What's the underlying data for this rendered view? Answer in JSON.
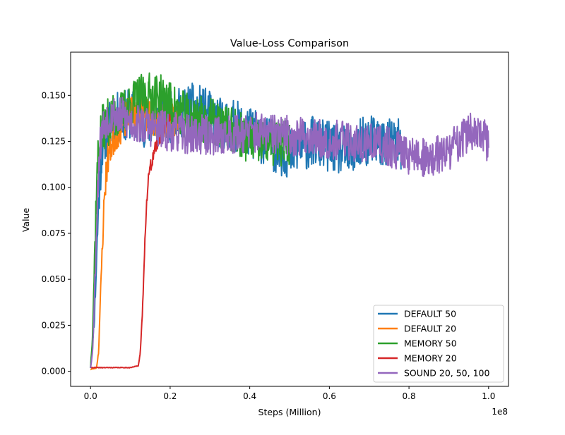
{
  "chart_data": {
    "type": "line",
    "title": "Value-Loss Comparison",
    "xlabel": "Steps (Million)",
    "ylabel": "Value",
    "x_offset_label": "1e8",
    "xlim": [
      -0.05,
      1.05
    ],
    "ylim": [
      -0.0082,
      0.1735
    ],
    "x_ticks": [
      0.0,
      0.2,
      0.4,
      0.6,
      0.8,
      1.0
    ],
    "x_tick_labels": [
      "0.0",
      "0.2",
      "0.4",
      "0.6",
      "0.8",
      "1.0"
    ],
    "y_ticks": [
      0.0,
      0.025,
      0.05,
      0.075,
      0.1,
      0.125,
      0.15
    ],
    "y_tick_labels": [
      "0.000",
      "0.025",
      "0.050",
      "0.075",
      "0.100",
      "0.125",
      "0.150"
    ],
    "grid": false,
    "legend_position": "lower-right",
    "series": [
      {
        "name": "DEFAULT 50",
        "color": "#1f77b4",
        "x": [
          0.0,
          0.01,
          0.02,
          0.025,
          0.03,
          0.04,
          0.05,
          0.07,
          0.1,
          0.13,
          0.16,
          0.2,
          0.23,
          0.26,
          0.29,
          0.32,
          0.36,
          0.4,
          0.42,
          0.45,
          0.48,
          0.5,
          0.53,
          0.56,
          0.6,
          0.63,
          0.66,
          0.68,
          0.7,
          0.72,
          0.75,
          0.78
        ],
        "y": [
          0.002,
          0.03,
          0.09,
          0.11,
          0.125,
          0.13,
          0.135,
          0.138,
          0.14,
          0.136,
          0.135,
          0.138,
          0.141,
          0.143,
          0.14,
          0.135,
          0.134,
          0.13,
          0.128,
          0.124,
          0.12,
          0.118,
          0.122,
          0.125,
          0.122,
          0.12,
          0.118,
          0.124,
          0.126,
          0.125,
          0.124,
          0.123
        ],
        "noise": 0.014,
        "seed": 11
      },
      {
        "name": "DEFAULT 20",
        "color": "#ff7f0e",
        "x": [
          0.0,
          0.015,
          0.02,
          0.025,
          0.03,
          0.035,
          0.04,
          0.045,
          0.05,
          0.06,
          0.08,
          0.1,
          0.12,
          0.15,
          0.18,
          0.2,
          0.22
        ],
        "y": [
          0.001,
          0.002,
          0.01,
          0.04,
          0.07,
          0.095,
          0.11,
          0.118,
          0.122,
          0.128,
          0.135,
          0.14,
          0.142,
          0.138,
          0.135,
          0.136,
          0.137
        ],
        "noise": 0.01,
        "seed": 23
      },
      {
        "name": "MEMORY 50",
        "color": "#2ca02c",
        "x": [
          0.0,
          0.005,
          0.01,
          0.015,
          0.02,
          0.025,
          0.03,
          0.04,
          0.06,
          0.08,
          0.1,
          0.12,
          0.15,
          0.18,
          0.2,
          0.23,
          0.26,
          0.3,
          0.34,
          0.38,
          0.42,
          0.46,
          0.5
        ],
        "y": [
          0.002,
          0.02,
          0.06,
          0.1,
          0.12,
          0.128,
          0.132,
          0.135,
          0.138,
          0.14,
          0.145,
          0.148,
          0.15,
          0.148,
          0.145,
          0.14,
          0.138,
          0.136,
          0.132,
          0.128,
          0.124,
          0.124,
          0.125
        ],
        "noise": 0.013,
        "seed": 37
      },
      {
        "name": "MEMORY 20",
        "color": "#d62728",
        "x": [
          0.0,
          0.02,
          0.04,
          0.06,
          0.08,
          0.1,
          0.12,
          0.125,
          0.13,
          0.135,
          0.14,
          0.145,
          0.15,
          0.155,
          0.16,
          0.17,
          0.18,
          0.19,
          0.2
        ],
        "y": [
          0.002,
          0.002,
          0.002,
          0.002,
          0.002,
          0.002,
          0.003,
          0.01,
          0.03,
          0.06,
          0.09,
          0.105,
          0.11,
          0.115,
          0.12,
          0.125,
          0.13,
          0.135,
          0.138
        ],
        "noise": 0.004,
        "seed": 41
      },
      {
        "name": "SOUND 20, 50, 100",
        "color": "#9467bd",
        "x": [
          0.0,
          0.005,
          0.01,
          0.015,
          0.02,
          0.025,
          0.03,
          0.04,
          0.06,
          0.08,
          0.1,
          0.15,
          0.2,
          0.3,
          0.4,
          0.5,
          0.6,
          0.7,
          0.75,
          0.8,
          0.85,
          0.9,
          0.95,
          1.0
        ],
        "y": [
          0.002,
          0.01,
          0.04,
          0.08,
          0.11,
          0.125,
          0.132,
          0.138,
          0.14,
          0.138,
          0.135,
          0.133,
          0.13,
          0.128,
          0.13,
          0.128,
          0.126,
          0.124,
          0.122,
          0.118,
          0.115,
          0.12,
          0.13,
          0.125
        ],
        "noise": 0.011,
        "seed": 53
      }
    ]
  }
}
